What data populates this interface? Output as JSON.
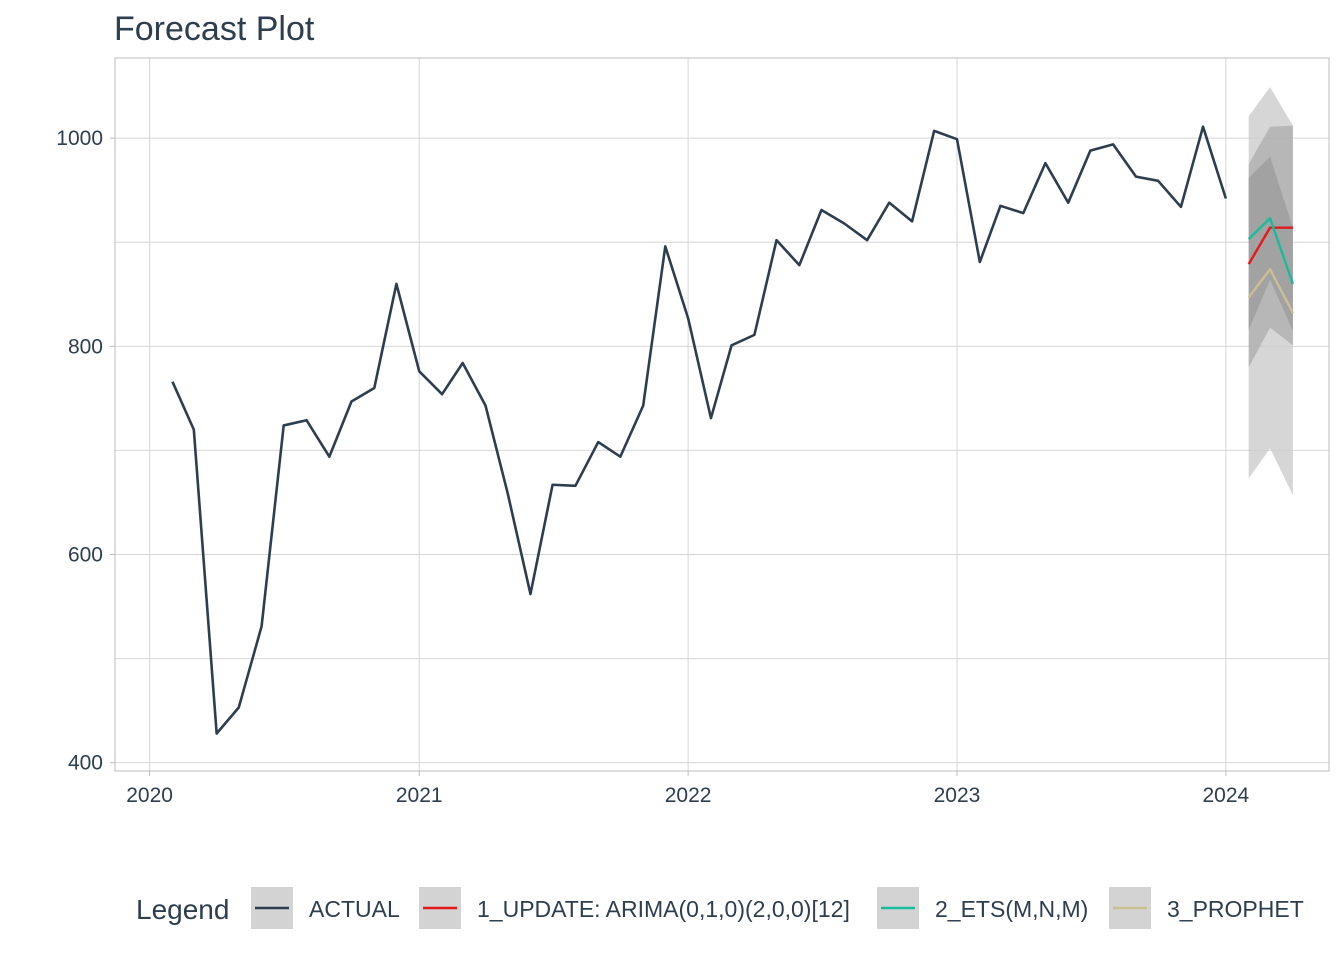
{
  "chart_data": {
    "type": "line",
    "title": "Forecast Plot",
    "xlabel": "",
    "ylabel": "",
    "xlim": [
      "2019-11-15",
      "2024-05-20"
    ],
    "ylim": [
      392,
      1077
    ],
    "x_ticks": [
      "2020",
      "2021",
      "2022",
      "2023",
      "2024"
    ],
    "y_ticks": [
      400,
      600,
      800,
      1000
    ],
    "grid": true,
    "legend_position": "bottom",
    "legend_title": "Legend",
    "series": [
      {
        "name": "ACTUAL",
        "color": "#2c3e50",
        "x": [
          "2020-02-01",
          "2020-03-01",
          "2020-04-01",
          "2020-05-01",
          "2020-06-01",
          "2020-07-01",
          "2020-08-01",
          "2020-09-01",
          "2020-10-01",
          "2020-11-01",
          "2020-12-01",
          "2021-01-01",
          "2021-02-01",
          "2021-03-01",
          "2021-04-01",
          "2021-05-01",
          "2021-06-01",
          "2021-07-01",
          "2021-08-01",
          "2021-09-01",
          "2021-10-01",
          "2021-11-01",
          "2021-12-01",
          "2022-01-01",
          "2022-02-01",
          "2022-03-01",
          "2022-04-01",
          "2022-05-01",
          "2022-06-01",
          "2022-07-01",
          "2022-08-01",
          "2022-09-01",
          "2022-10-01",
          "2022-11-01",
          "2022-12-01",
          "2023-01-01",
          "2023-02-01",
          "2023-03-01",
          "2023-04-01",
          "2023-05-01",
          "2023-06-01",
          "2023-07-01",
          "2023-08-01",
          "2023-09-01",
          "2023-10-01",
          "2023-11-01",
          "2023-12-01",
          "2024-01-01"
        ],
        "values": [
          766,
          720,
          428,
          453,
          531,
          724,
          729,
          694,
          747,
          760,
          860,
          776,
          754,
          784,
          743,
          659,
          562,
          667,
          666,
          708,
          694,
          743,
          896,
          827,
          731,
          801,
          811,
          902,
          878,
          931,
          918,
          902,
          938,
          920,
          1007,
          999,
          881,
          935,
          928,
          976,
          938,
          988,
          994,
          963,
          959,
          934,
          1011,
          942
        ]
      },
      {
        "name": "1_UPDATE: ARIMA(0,1,0)(2,0,0)[12]",
        "color": "#e31a1c",
        "x": [
          "2024-02-01",
          "2024-03-01",
          "2024-04-01"
        ],
        "values": [
          879,
          914,
          914
        ]
      },
      {
        "name": "2_ETS(M,N,M)",
        "color": "#18bc9c",
        "x": [
          "2024-02-01",
          "2024-03-01",
          "2024-04-01"
        ],
        "values": [
          903,
          923,
          860
        ]
      },
      {
        "name": "3_PROPHET",
        "color": "#ccbe93",
        "x": [
          "2024-02-01",
          "2024-03-01",
          "2024-04-01"
        ],
        "values": [
          847,
          874,
          832
        ]
      }
    ],
    "intervals": [
      {
        "x": [
          "2024-02-01",
          "2024-03-01",
          "2024-04-01"
        ],
        "lo": [
          673,
          702,
          657
        ],
        "hi": [
          1021,
          1049,
          1012
        ],
        "color": "#cccccc",
        "opacity": 0.8
      },
      {
        "x": [
          "2024-02-01",
          "2024-03-01",
          "2024-04-01"
        ],
        "lo": [
          780,
          818,
          801
        ],
        "hi": [
          975,
          1011,
          1012
        ],
        "color": "#aaaaaa",
        "opacity": 0.7
      },
      {
        "x": [
          "2024-02-01",
          "2024-03-01",
          "2024-04-01"
        ],
        "lo": [
          816,
          864,
          815
        ],
        "hi": [
          962,
          982,
          914
        ],
        "color": "#999999",
        "opacity": 0.7
      }
    ]
  }
}
